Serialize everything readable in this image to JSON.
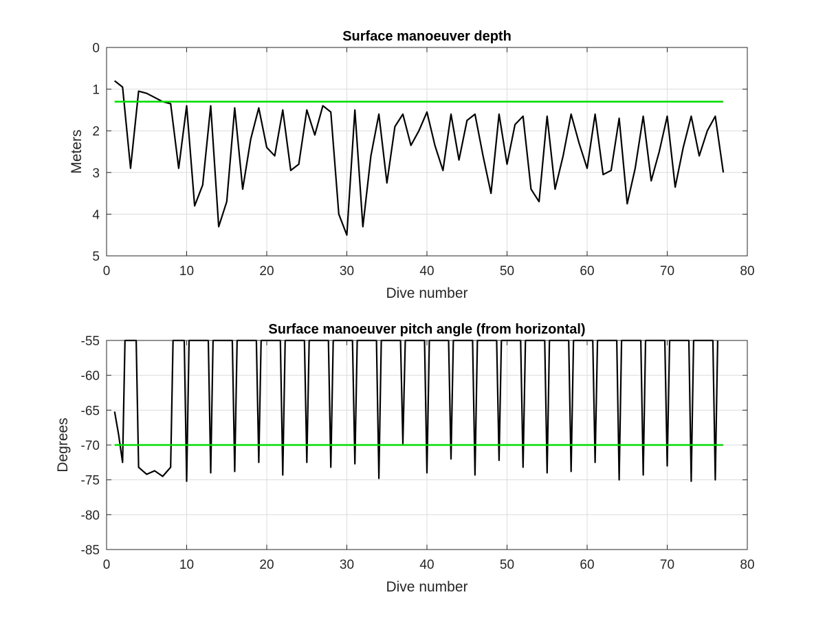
{
  "chart_data": [
    {
      "type": "line",
      "title": "Surface manoeuver depth",
      "xlabel": "Dive number",
      "ylabel": "Meters",
      "xlim": [
        0,
        80
      ],
      "ylim": [
        0,
        5
      ],
      "y_reversed": true,
      "xticks": [
        "0",
        "10",
        "20",
        "30",
        "40",
        "50",
        "60",
        "70",
        "80"
      ],
      "yticks": [
        "0",
        "1",
        "2",
        "3",
        "4",
        "5"
      ],
      "grid": true,
      "series": [
        {
          "color": "#000000",
          "x": [
            1,
            2,
            3,
            4,
            5,
            6,
            7,
            8,
            9,
            10,
            11,
            12,
            13,
            14,
            15,
            16,
            17,
            18,
            19,
            20,
            21,
            22,
            23,
            24,
            25,
            26,
            27,
            28,
            29,
            30,
            31,
            32,
            33,
            34,
            35,
            36,
            37,
            38,
            39,
            40,
            41,
            42,
            43,
            44,
            45,
            46,
            47,
            48,
            49,
            50,
            51,
            52,
            53,
            54,
            55,
            56,
            57,
            58,
            59,
            60,
            61,
            62,
            63,
            64,
            65,
            66,
            67,
            68,
            69,
            70,
            71,
            72,
            73,
            74,
            75,
            76,
            77
          ],
          "values": [
            0.8,
            0.95,
            2.9,
            1.05,
            1.1,
            1.2,
            1.3,
            1.35,
            2.9,
            1.4,
            3.8,
            3.3,
            1.4,
            4.3,
            3.7,
            1.45,
            3.4,
            2.2,
            1.45,
            2.4,
            2.6,
            1.5,
            2.95,
            2.8,
            1.5,
            2.1,
            1.4,
            1.55,
            4.0,
            4.5,
            1.5,
            4.3,
            2.6,
            1.6,
            3.25,
            1.9,
            1.6,
            2.35,
            2.0,
            1.55,
            2.35,
            2.95,
            1.6,
            2.7,
            1.75,
            1.6,
            2.6,
            3.5,
            1.6,
            2.8,
            1.85,
            1.65,
            3.4,
            3.7,
            1.65,
            3.4,
            2.6,
            1.6,
            2.3,
            2.9,
            1.6,
            3.05,
            2.95,
            1.7,
            3.75,
            2.9,
            1.65,
            3.2,
            2.5,
            1.65,
            3.35,
            2.4,
            1.65,
            2.6,
            2.0,
            1.65,
            3.0
          ]
        },
        {
          "color": "#00dd00",
          "x": [
            1,
            77
          ],
          "values": [
            1.3,
            1.3
          ]
        }
      ]
    },
    {
      "type": "line",
      "title": "Surface manoeuver pitch angle (from horizontal)",
      "xlabel": "Dive number",
      "ylabel": "Degrees",
      "xlim": [
        0,
        80
      ],
      "ylim": [
        -85,
        -55
      ],
      "xticks": [
        "0",
        "10",
        "20",
        "30",
        "40",
        "50",
        "60",
        "70",
        "80"
      ],
      "yticks": [
        "-55",
        "-60",
        "-65",
        "-70",
        "-75",
        "-80",
        "-85"
      ],
      "grid": true,
      "series": [
        {
          "color": "#000000",
          "x": [
            1.0,
            1.5,
            2.0,
            2.3,
            3.7,
            4.0,
            5.0,
            6.0,
            7.0,
            8.0,
            8.3,
            9.7,
            10.0,
            10.3,
            12.7,
            13.0,
            13.3,
            15.7,
            16.0,
            16.3,
            18.7,
            19.0,
            19.3,
            21.7,
            22.0,
            22.3,
            24.7,
            25.0,
            25.3,
            27.7,
            28.0,
            28.3,
            30.7,
            31.0,
            31.3,
            33.7,
            34.0,
            34.3,
            36.7,
            37.0,
            37.3,
            39.7,
            40.0,
            40.3,
            42.7,
            43.0,
            43.3,
            45.7,
            46.0,
            46.3,
            48.7,
            49.0,
            49.3,
            51.7,
            52.0,
            52.3,
            54.7,
            55.0,
            55.3,
            57.7,
            58.0,
            58.3,
            60.7,
            61.0,
            61.3,
            63.7,
            64.0,
            64.3,
            66.7,
            67.0,
            67.3,
            69.7,
            70.0,
            70.3,
            72.7,
            73.0,
            73.3,
            75.7,
            76.0,
            76.3
          ],
          "values": [
            -65.2,
            -68.5,
            -72.5,
            -55.0,
            -55.0,
            -73.2,
            -74.2,
            -73.7,
            -74.5,
            -73.2,
            -55.0,
            -55.0,
            -75.2,
            -55.0,
            -55.0,
            -74.0,
            -55.0,
            -55.0,
            -73.8,
            -55.0,
            -55.0,
            -72.5,
            -55.0,
            -55.0,
            -74.3,
            -55.0,
            -55.0,
            -72.5,
            -55.0,
            -55.0,
            -73.2,
            -55.0,
            -55.0,
            -72.7,
            -55.0,
            -55.0,
            -74.8,
            -55.0,
            -55.0,
            -69.8,
            -55.0,
            -55.0,
            -74.0,
            -55.0,
            -55.0,
            -72.0,
            -55.0,
            -55.0,
            -74.3,
            -55.0,
            -55.0,
            -72.2,
            -55.0,
            -55.0,
            -73.2,
            -55.0,
            -55.0,
            -74.0,
            -55.0,
            -55.0,
            -73.8,
            -55.0,
            -55.0,
            -72.5,
            -55.0,
            -55.0,
            -75.0,
            -55.0,
            -55.0,
            -74.3,
            -55.0,
            -55.0,
            -73.0,
            -55.0,
            -55.0,
            -75.2,
            -55.0,
            -55.0,
            -75.0,
            -55.0
          ]
        },
        {
          "color": "#00dd00",
          "x": [
            1,
            77
          ],
          "values": [
            -70,
            -70
          ]
        }
      ]
    }
  ]
}
